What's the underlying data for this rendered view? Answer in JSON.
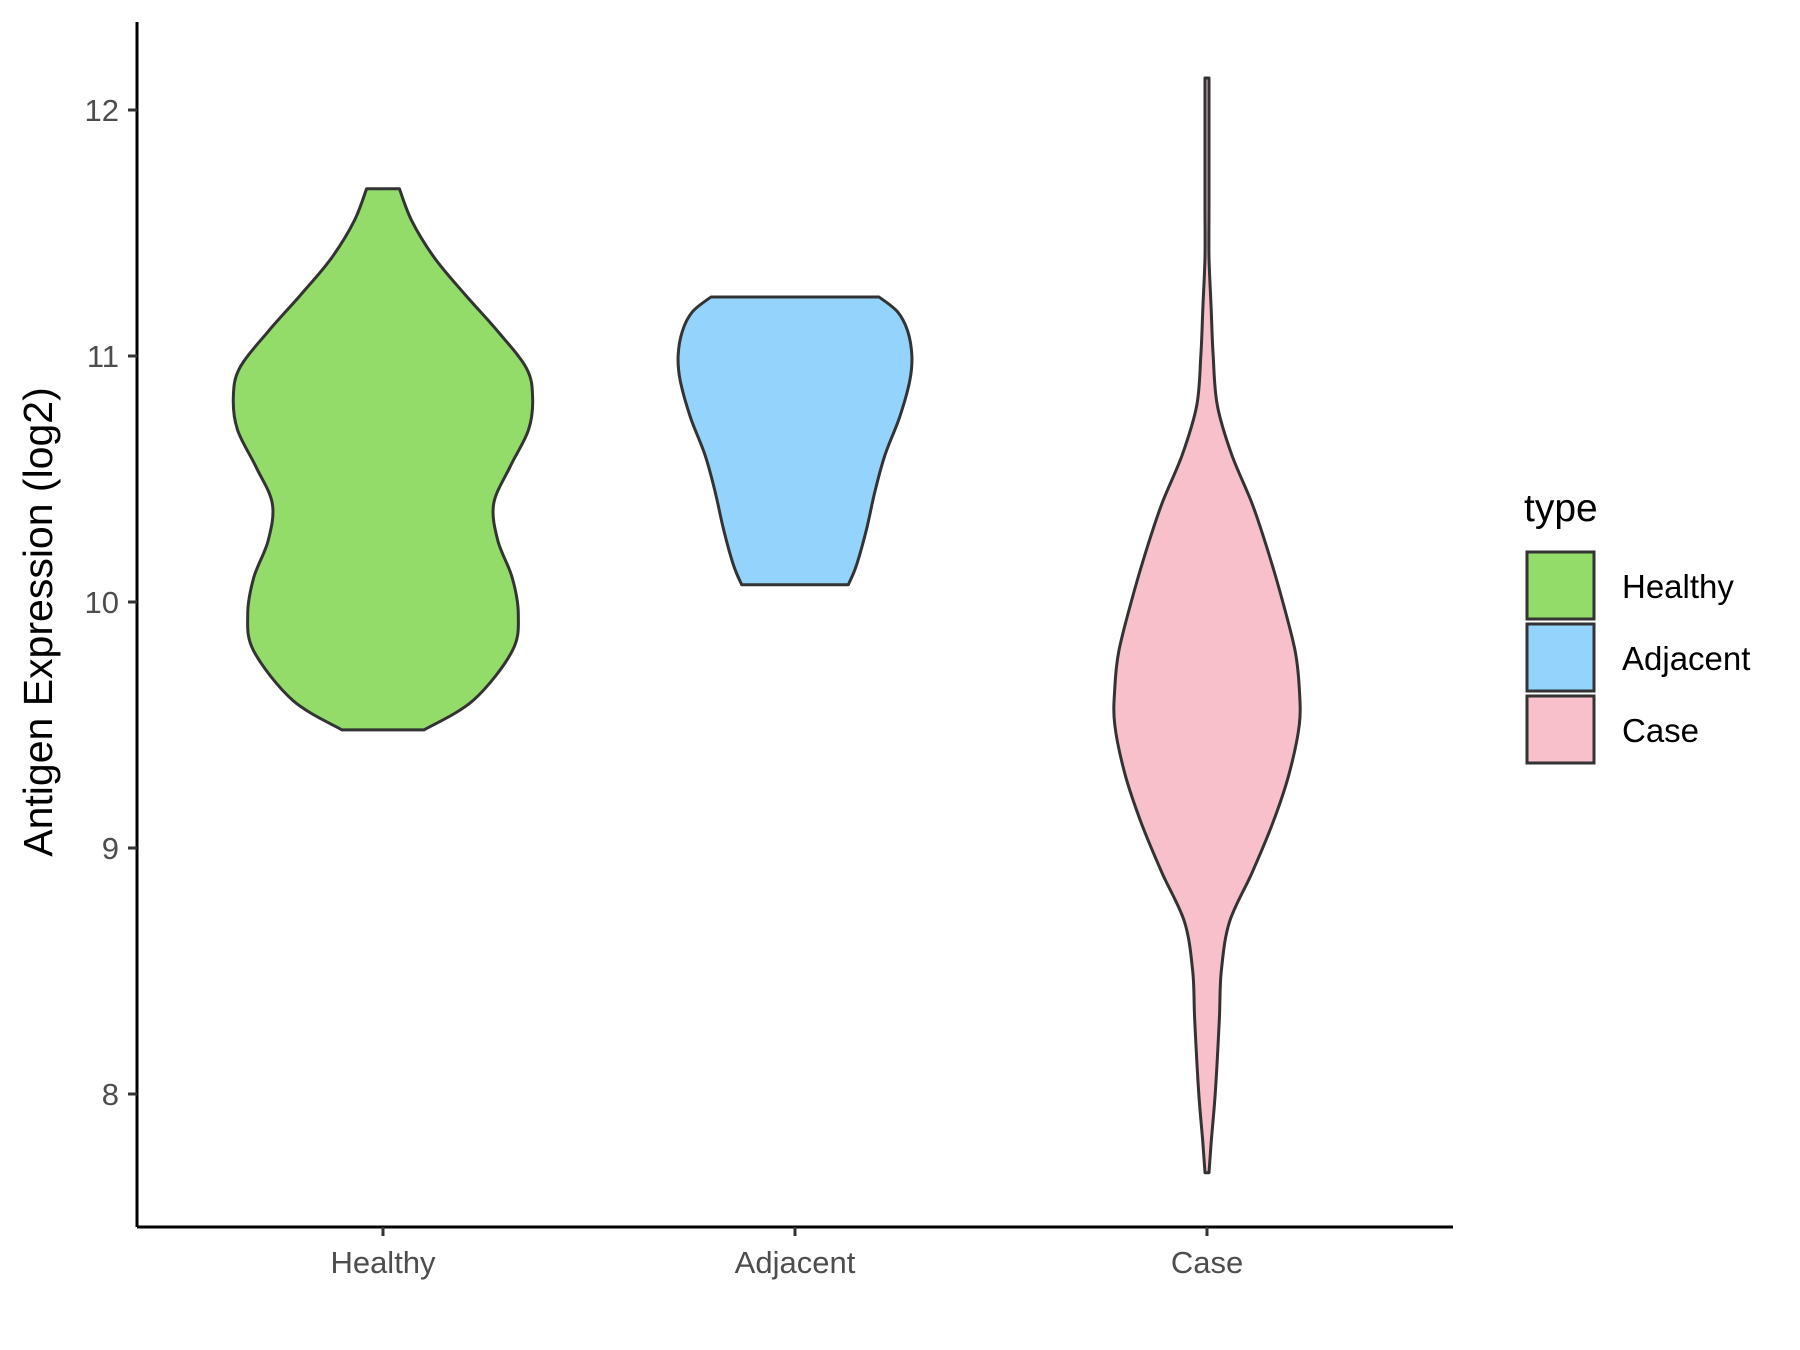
{
  "chart_data": {
    "type": "violin",
    "ylabel": "Antigen Expression (log2)",
    "xlabel": "",
    "categories": [
      "Healthy",
      "Adjacent",
      "Case"
    ],
    "ylim": [
      7.5,
      12.35
    ],
    "yticks": [
      8,
      9,
      10,
      11,
      12
    ],
    "grid": false,
    "legend": {
      "title": "type",
      "position": "right",
      "entries": [
        "Healthy",
        "Adjacent",
        "Case"
      ]
    },
    "series": [
      {
        "name": "Healthy",
        "color": "#93DC6A",
        "min": 9.48,
        "max": 11.68,
        "profile": [
          [
            9.48,
            0.2
          ],
          [
            9.6,
            0.44
          ],
          [
            9.8,
            0.63
          ],
          [
            9.95,
            0.66
          ],
          [
            10.1,
            0.63
          ],
          [
            10.25,
            0.56
          ],
          [
            10.4,
            0.54
          ],
          [
            10.55,
            0.62
          ],
          [
            10.7,
            0.71
          ],
          [
            10.83,
            0.73
          ],
          [
            10.95,
            0.7
          ],
          [
            11.1,
            0.56
          ],
          [
            11.25,
            0.4
          ],
          [
            11.4,
            0.25
          ],
          [
            11.55,
            0.14
          ],
          [
            11.68,
            0.08
          ]
        ]
      },
      {
        "name": "Adjacent",
        "color": "#93D3FC",
        "min": 10.07,
        "max": 11.24,
        "profile": [
          [
            10.07,
            0.26
          ],
          [
            10.15,
            0.3
          ],
          [
            10.3,
            0.35
          ],
          [
            10.45,
            0.39
          ],
          [
            10.6,
            0.44
          ],
          [
            10.75,
            0.51
          ],
          [
            10.9,
            0.56
          ],
          [
            11.0,
            0.57
          ],
          [
            11.1,
            0.55
          ],
          [
            11.18,
            0.5
          ],
          [
            11.24,
            0.41
          ]
        ]
      },
      {
        "name": "Case",
        "color": "#F7C0CB",
        "min": 7.68,
        "max": 12.13,
        "profile": [
          [
            7.68,
            0.01
          ],
          [
            7.8,
            0.02
          ],
          [
            8.0,
            0.04
          ],
          [
            8.3,
            0.06
          ],
          [
            8.5,
            0.07
          ],
          [
            8.7,
            0.11
          ],
          [
            8.9,
            0.22
          ],
          [
            9.1,
            0.32
          ],
          [
            9.3,
            0.4
          ],
          [
            9.5,
            0.45
          ],
          [
            9.65,
            0.45
          ],
          [
            9.8,
            0.43
          ],
          [
            10.0,
            0.37
          ],
          [
            10.2,
            0.3
          ],
          [
            10.4,
            0.22
          ],
          [
            10.6,
            0.12
          ],
          [
            10.8,
            0.05
          ],
          [
            11.0,
            0.03
          ],
          [
            11.2,
            0.02
          ],
          [
            11.4,
            0.01
          ],
          [
            11.6,
            0.01
          ],
          [
            11.8,
            0.01
          ],
          [
            12.0,
            0.01
          ],
          [
            12.13,
            0.01
          ]
        ]
      }
    ]
  }
}
